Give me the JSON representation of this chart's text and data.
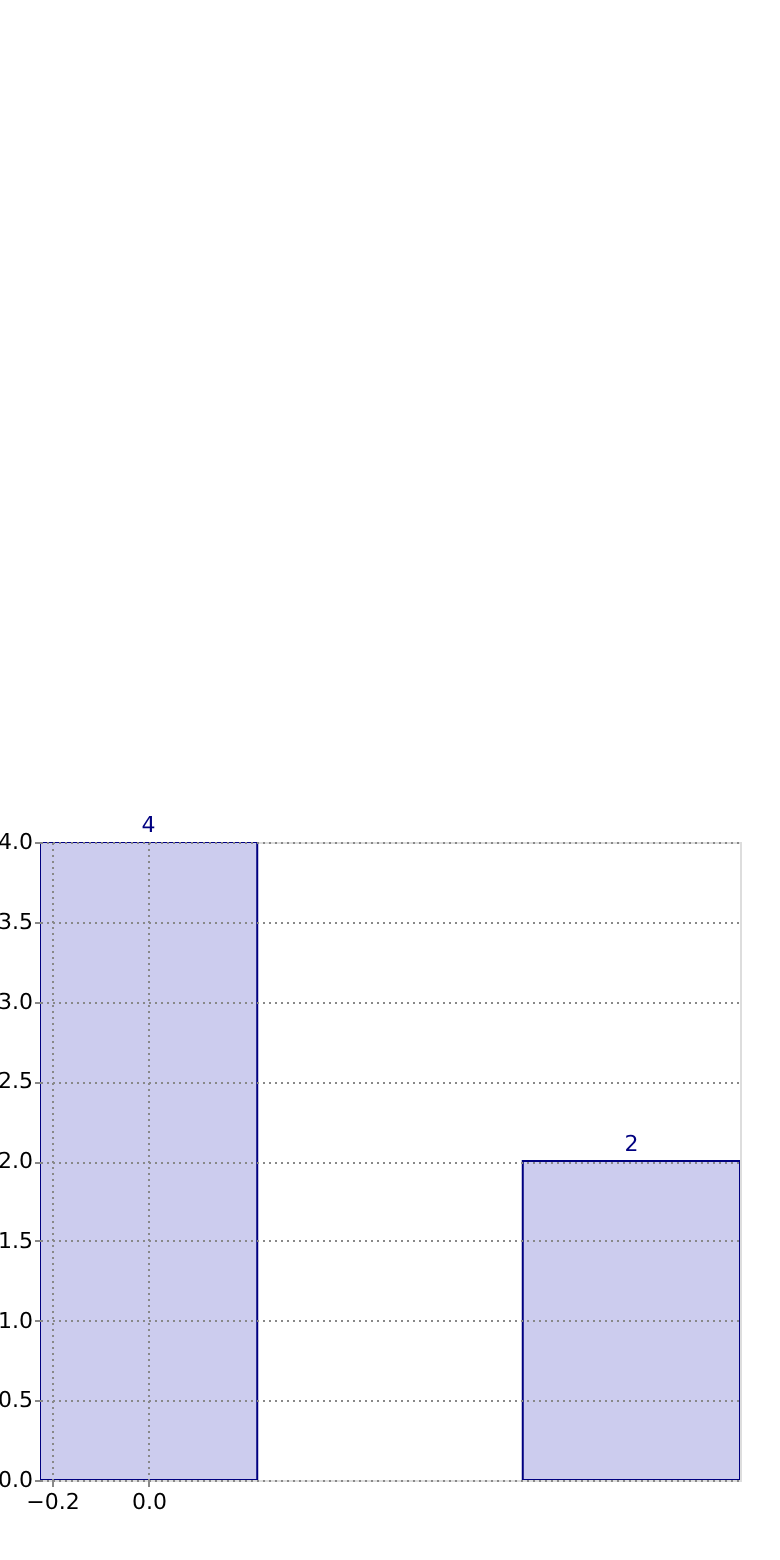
{
  "chart_data": {
    "type": "bar",
    "x": [
      0,
      1
    ],
    "values": [
      4,
      2
    ],
    "color": "#ccccee",
    "xlim": [
      -0.225,
      1.225
    ],
    "xticks": [
      {
        "value": -0.2,
        "label": "−0.2"
      },
      {
        "value": 0,
        "label": "0.0"
      }
    ],
    "ylim": [
      0,
      4
    ],
    "yticks": [
      {
        "value": 0,
        "label": "0.0"
      },
      {
        "value": 0.5,
        "label": "0.5"
      },
      {
        "value": 1,
        "label": "1.0"
      },
      {
        "value": 1.5,
        "label": "1.5"
      },
      {
        "value": 2,
        "label": "2.0"
      },
      {
        "value": 2.5,
        "label": "2.5"
      },
      {
        "value": 3,
        "label": "3.0"
      },
      {
        "value": 3.5,
        "label": "3.5"
      },
      {
        "value": 4,
        "label": "4.0"
      }
    ],
    "grid": true,
    "data_labels": true
  }
}
